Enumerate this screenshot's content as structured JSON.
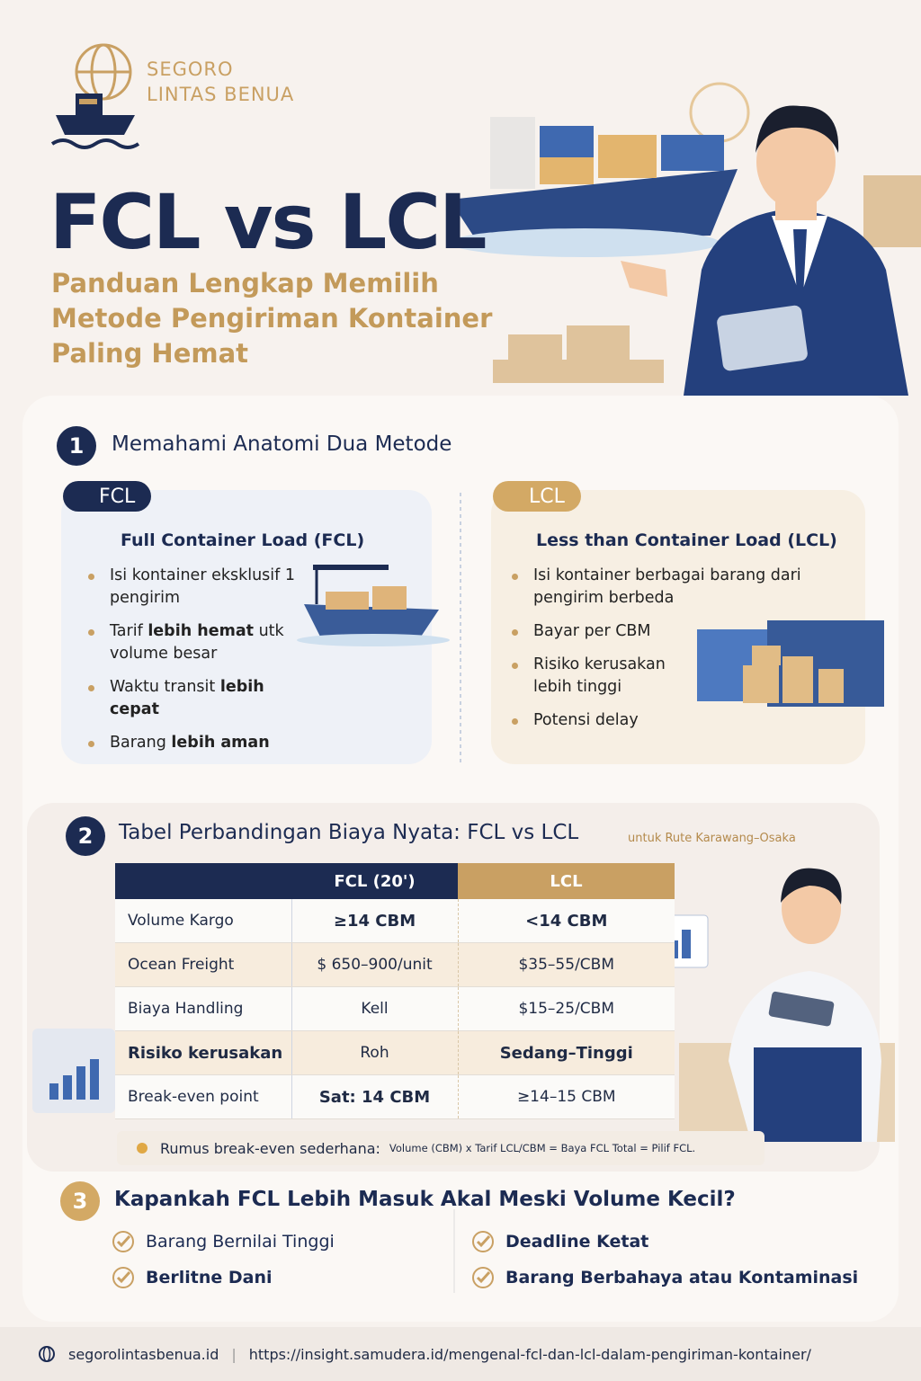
{
  "header": {
    "brand_line1": "SEGORO",
    "brand_line2": "LINTAS BENUA",
    "title": "FCL vs LCL",
    "subtitle": [
      "Panduan Lengkap Memilih",
      "Metode Pengiriman Kontainer",
      "Paling Hemat"
    ]
  },
  "section1": {
    "number": "1",
    "heading": "Memahami Anatomi Dua Metode",
    "fcl": {
      "tag": "FCL",
      "title": "Full Container Load (FCL)",
      "bullets": [
        [
          "Isi kontainer eksklusif 1 pengirim"
        ],
        [
          "Tarif ",
          "lebih hemat",
          " utk volume besar"
        ],
        [
          "Waktu transit ",
          "lebih cepat"
        ],
        [
          "Barang ",
          "lebih aman"
        ]
      ]
    },
    "lcl": {
      "tag": "LCL",
      "title": "Less than Container Load (LCL)",
      "bullets": [
        [
          "Isi kontainer berbagai barang dari pengirim berbeda"
        ],
        [
          "Bayar per CBM"
        ],
        [
          "Risiko kerusakan lebih tinggi"
        ],
        [
          "Potensi delay"
        ]
      ]
    }
  },
  "section2": {
    "number": "2",
    "heading": "Tabel Perbandingan Biaya Nyata: FCL vs LCL",
    "note": "untuk Rute Karawang–Osaka",
    "table": {
      "columns": [
        "FCL (20')",
        "LCL"
      ],
      "rows": [
        [
          "Volume Kargo",
          "≥14 CBM",
          "<14 CBM"
        ],
        [
          "Ocean Freight",
          "$ 650–900/unit",
          "$35–55/CBM"
        ],
        [
          "Biaya Handling",
          "Kell",
          "$15–25/CBM"
        ],
        [
          "Risiko kerusakan",
          "Roh",
          "Sedang–Tinggi"
        ],
        [
          "Break-even point",
          "Sat: 14 CBM",
          "≥14–15 CBM"
        ]
      ]
    },
    "formula_label": "Rumus break-even sederhana:",
    "formula": "Volume (CBM) x Tarif LCL/CBM = Baya FCL Total = Pilif FCL."
  },
  "section3": {
    "number": "3",
    "heading": "Kapankah FCL Lebih Masuk Akal Meski Volume Kecil?",
    "left": [
      "Barang Bernilai Tinggi",
      "Berlitne Dani"
    ],
    "right": [
      "Deadline Ketat",
      "Barang Berbahaya atau Kontaminasi"
    ]
  },
  "footer": {
    "site": "segorolintasbenua.id",
    "url": "https://insight.samudera.id/mengenal-fcl-dan-lcl-dalam-pengiriman-kontainer/"
  }
}
